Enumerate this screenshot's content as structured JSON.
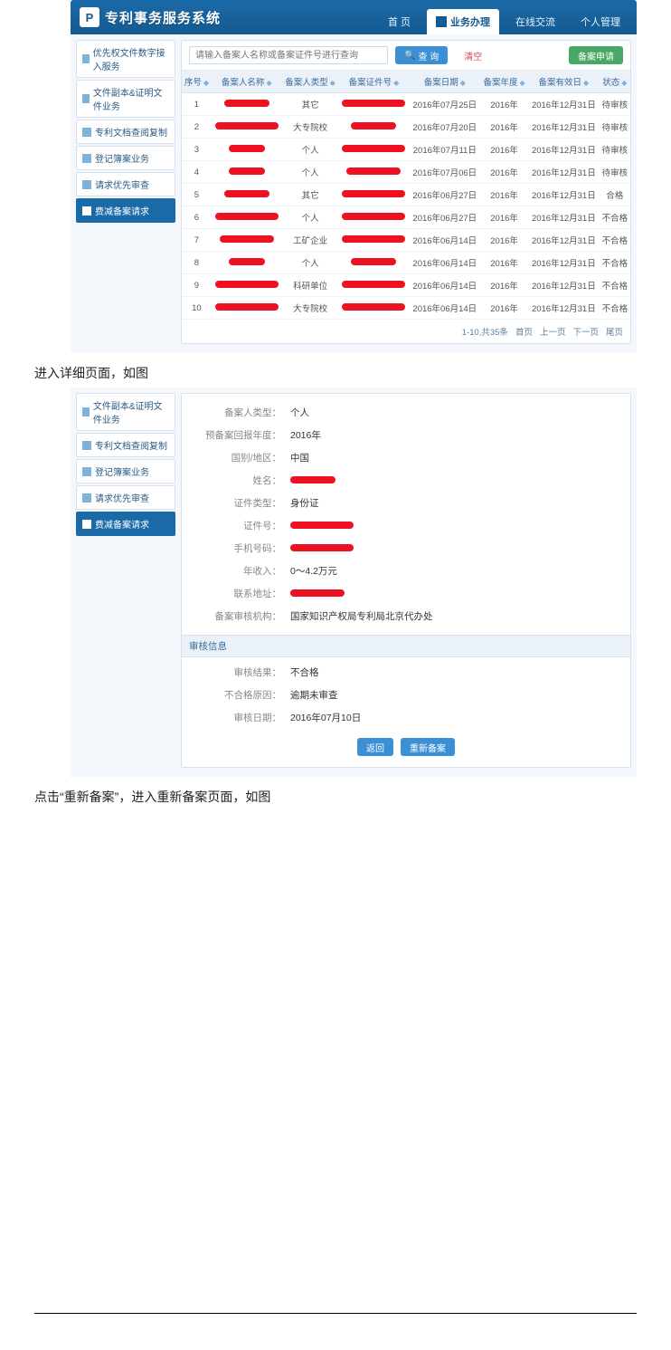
{
  "header": {
    "system_name": "专利事务服务系统",
    "logo_text": "P",
    "nav": [
      {
        "label": "首 页",
        "active": false
      },
      {
        "label": "业务办理",
        "active": true
      },
      {
        "label": "在线交流",
        "active": false
      },
      {
        "label": "个人管理",
        "active": false
      }
    ]
  },
  "colors": {
    "header_grad_top": "#1a6aa8",
    "header_grad_bot": "#155a91",
    "panel_bg": "#f4f7fb",
    "border": "#d6e3ee",
    "th_bg": "#eaf1f8",
    "link": "#3a6c9a",
    "btn_blue": "#3b8fd4",
    "btn_green": "#4aa866",
    "redact": "#ee1122"
  },
  "sidebar1": {
    "items": [
      {
        "label": "优先权文件数字接入服务",
        "active": false
      },
      {
        "label": "文件副本&证明文件业务",
        "active": false
      },
      {
        "label": "专利文档查阅复制",
        "active": false
      },
      {
        "label": "登记簿案业务",
        "active": false
      },
      {
        "label": "请求优先审查",
        "active": false
      },
      {
        "label": "费减备案请求",
        "active": true
      }
    ]
  },
  "search": {
    "placeholder": "请输入备案人名称或备案证件号进行查询",
    "btn_search": "查 询",
    "btn_clear": "清空",
    "btn_add": "备案申请"
  },
  "table": {
    "columns": [
      "序号",
      "备案人名称",
      "备案人类型",
      "备案证件号",
      "备案日期",
      "备案年度",
      "备案有效日",
      "状态"
    ],
    "rows": [
      {
        "idx": "1",
        "name_r": "w1",
        "type": "其它",
        "cert_r": "w2",
        "date": "2016年07月25日",
        "year": "2016年",
        "valid": "2016年12月31日",
        "status": "待审核"
      },
      {
        "idx": "2",
        "name_r": "w2",
        "type": "大专院校",
        "cert_r": "w1",
        "date": "2016年07月20日",
        "year": "2016年",
        "valid": "2016年12月31日",
        "status": "待审核"
      },
      {
        "idx": "3",
        "name_r": "w3",
        "type": "个人",
        "cert_r": "w2",
        "date": "2016年07月11日",
        "year": "2016年",
        "valid": "2016年12月31日",
        "status": "待审核"
      },
      {
        "idx": "4",
        "name_r": "w3",
        "type": "个人",
        "cert_r": "w4",
        "date": "2016年07月06日",
        "year": "2016年",
        "valid": "2016年12月31日",
        "status": "待审核"
      },
      {
        "idx": "5",
        "name_r": "w1",
        "type": "其它",
        "cert_r": "w2",
        "date": "2016年06月27日",
        "year": "2016年",
        "valid": "2016年12月31日",
        "status": "合格"
      },
      {
        "idx": "6",
        "name_r": "w2",
        "type": "个人",
        "cert_r": "w2",
        "date": "2016年06月27日",
        "year": "2016年",
        "valid": "2016年12月31日",
        "status": "不合格"
      },
      {
        "idx": "7",
        "name_r": "w4",
        "type": "工矿企业",
        "cert_r": "w2",
        "date": "2016年06月14日",
        "year": "2016年",
        "valid": "2016年12月31日",
        "status": "不合格"
      },
      {
        "idx": "8",
        "name_r": "w3",
        "type": "个人",
        "cert_r": "w1",
        "date": "2016年06月14日",
        "year": "2016年",
        "valid": "2016年12月31日",
        "status": "不合格"
      },
      {
        "idx": "9",
        "name_r": "w2",
        "type": "科研单位",
        "cert_r": "w2",
        "date": "2016年06月14日",
        "year": "2016年",
        "valid": "2016年12月31日",
        "status": "不合格"
      },
      {
        "idx": "10",
        "name_r": "w2",
        "type": "大专院校",
        "cert_r": "w2",
        "date": "2016年06月14日",
        "year": "2016年",
        "valid": "2016年12月31日",
        "status": "不合格"
      }
    ],
    "pager": {
      "info": "1-10,共35条",
      "first": "首页",
      "prev": "上一页",
      "next": "下一页",
      "last": "尾页"
    }
  },
  "caption1": "进入详细页面，如图",
  "sidebar2": {
    "items": [
      {
        "label": "文件副本&证明文件业务",
        "active": false
      },
      {
        "label": "专利文档查阅复制",
        "active": false
      },
      {
        "label": "登记簿案业务",
        "active": false
      },
      {
        "label": "请求优先审查",
        "active": false
      },
      {
        "label": "费减备案请求",
        "active": true
      }
    ]
  },
  "detail": {
    "fields": [
      {
        "label": "备案人类型：",
        "value": "个人",
        "redact": false
      },
      {
        "label": "预备案回报年度：",
        "value": "2016年",
        "redact": false
      },
      {
        "label": "国别/地区：",
        "value": "中国",
        "redact": false
      },
      {
        "label": "姓名：",
        "value": "",
        "redact": true,
        "rw": "w1"
      },
      {
        "label": "证件类型：",
        "value": "身份证",
        "redact": false
      },
      {
        "label": "证件号：",
        "value": "",
        "redact": true,
        "rw": "w2"
      },
      {
        "label": "手机号码：",
        "value": "",
        "redact": true,
        "rw": "w2"
      },
      {
        "label": "年收入：",
        "value": "0～4.2万元",
        "redact": false
      },
      {
        "label": "联系地址：",
        "value": "",
        "redact": true,
        "rw": "w4"
      },
      {
        "label": "备案审核机构：",
        "value": "国家知识产权局专利局北京代办处",
        "redact": false
      }
    ],
    "audit_header": "审核信息",
    "audit": [
      {
        "label": "审核结果：",
        "value": "不合格"
      },
      {
        "label": "不合格原因：",
        "value": "逾期未审查"
      },
      {
        "label": "审核日期：",
        "value": "2016年07月10日"
      }
    ],
    "btn_back": "返回",
    "btn_renew": "重新备案"
  },
  "caption2": "点击“重新备案”，进入重新备案页面，如图"
}
